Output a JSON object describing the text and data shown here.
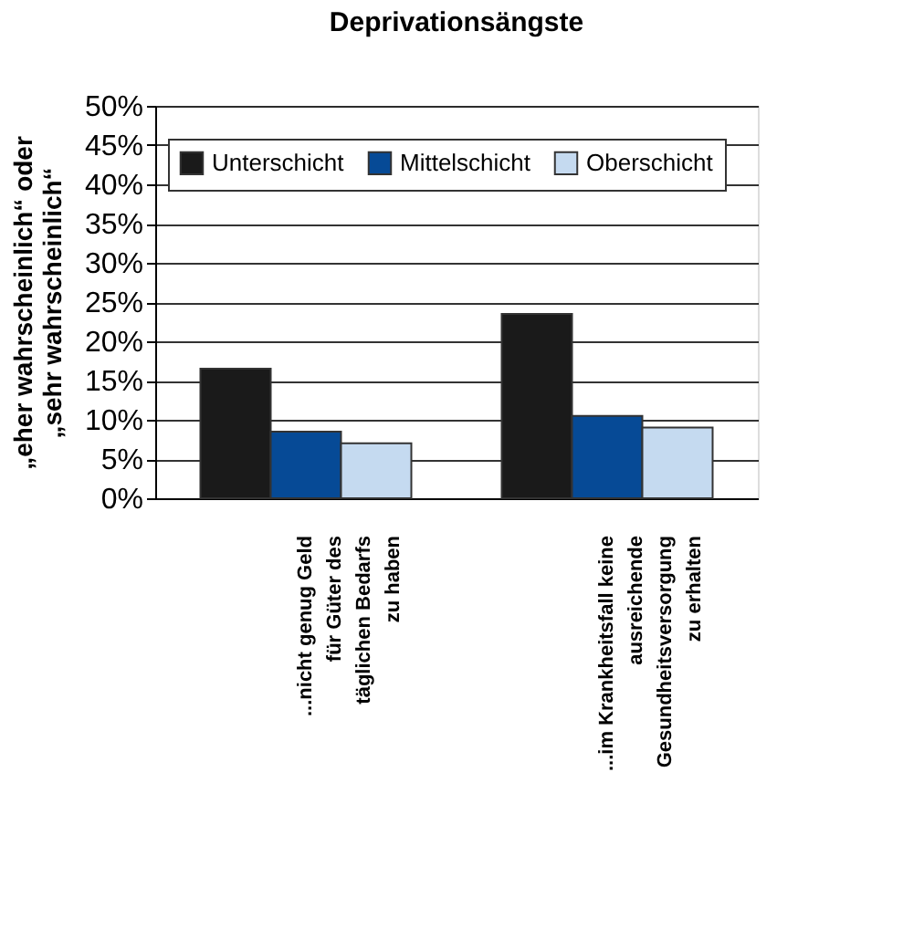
{
  "chart_data": {
    "type": "bar",
    "title": "Deprivationsängste",
    "ylabel": "„eher wahrscheinlich“ oder\n„sehr wahrscheinlich“",
    "categories": [
      "...nicht genug Geld\nfür Güter des\ntäglichen Bedarfs\nzu haben",
      "...im Krankheitsfall keine\nausreichende\nGesundheitsversorgung\nzu erhalten"
    ],
    "series": [
      {
        "name": "Unterschicht",
        "color": "#1a1a1a",
        "values": [
          16.5,
          23.5
        ]
      },
      {
        "name": "Mittelschicht",
        "color": "#064a96",
        "values": [
          8.5,
          10.5
        ]
      },
      {
        "name": "Oberschicht",
        "color": "#c5daf0",
        "values": [
          7,
          9
        ]
      }
    ],
    "ylim": [
      0,
      50
    ],
    "yticks": [
      {
        "value": 0,
        "label": "0%"
      },
      {
        "value": 5,
        "label": "5%"
      },
      {
        "value": 10,
        "label": "10%"
      },
      {
        "value": 15,
        "label": "15%"
      },
      {
        "value": 20,
        "label": "20%"
      },
      {
        "value": 25,
        "label": "25%"
      },
      {
        "value": 30,
        "label": "30%"
      },
      {
        "value": 35,
        "label": "35%"
      },
      {
        "value": 40,
        "label": "40%"
      },
      {
        "value": 45,
        "label": "45%"
      },
      {
        "value": 50,
        "label": "50%"
      }
    ],
    "grid": "y",
    "legend": "top right"
  }
}
